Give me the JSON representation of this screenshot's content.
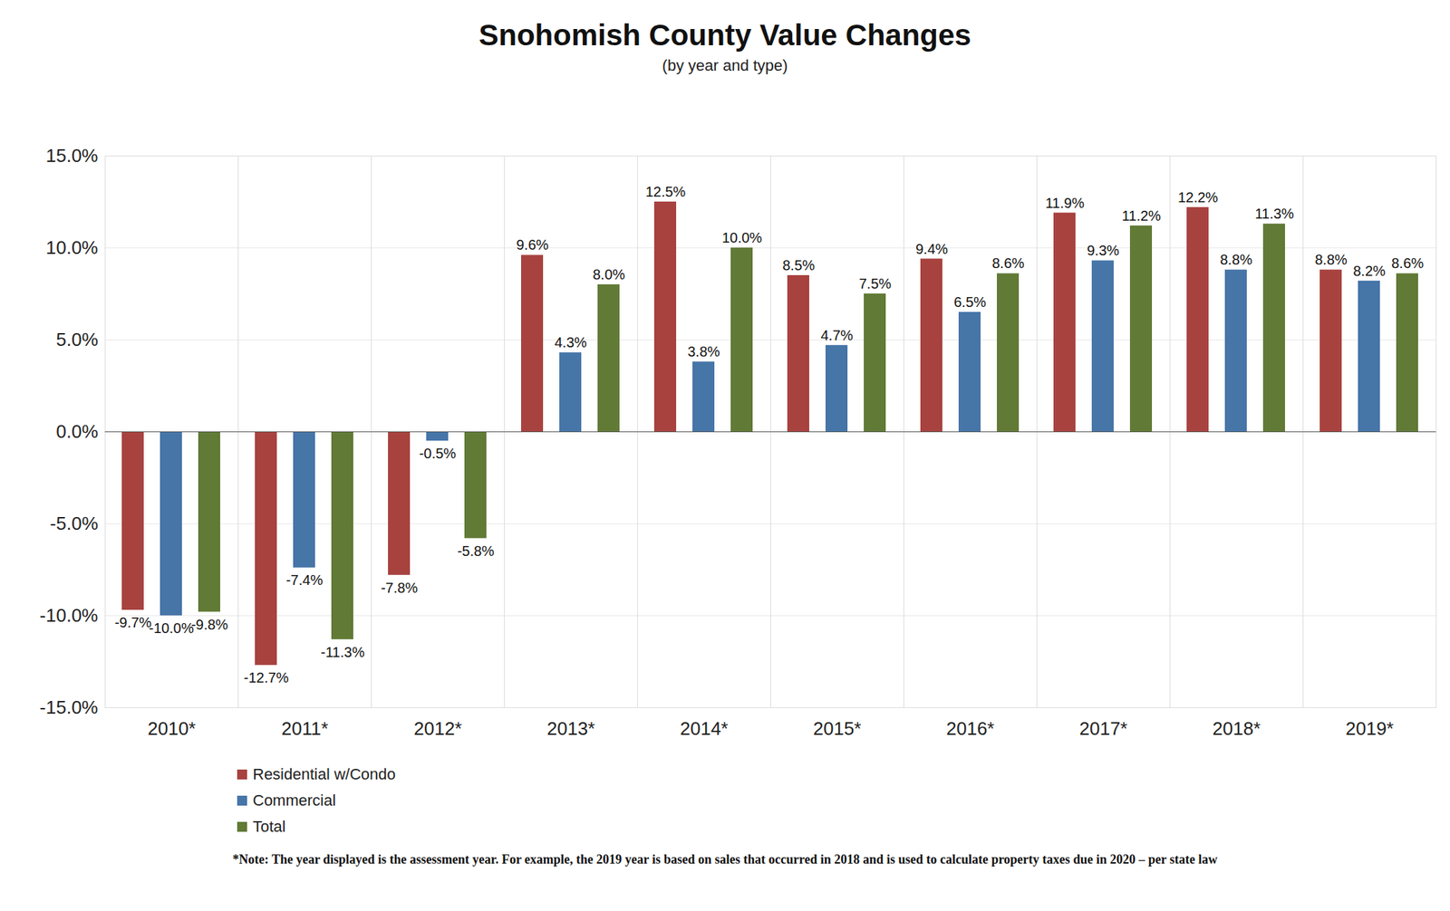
{
  "chart_data": {
    "type": "bar",
    "title": "Snohomish County Value Changes",
    "subtitle": "(by year and type)",
    "note": "*Note:  The year displayed is the assessment year.  For example, the 2019 year is based on sales that occurred in 2018 and is used to calculate property taxes due in 2020 – per state law",
    "categories": [
      "2010*",
      "2011*",
      "2012*",
      "2013*",
      "2014*",
      "2015*",
      "2016*",
      "2017*",
      "2018*",
      "2019*"
    ],
    "series": [
      {
        "name": "Residential w/Condo",
        "color": "#a8423f",
        "values": [
          -9.7,
          -12.7,
          -7.8,
          9.6,
          12.5,
          8.5,
          9.4,
          11.9,
          12.2,
          8.8
        ],
        "value_labels": [
          "-9.7%",
          "-12.7%",
          "-7.8%",
          "9.6%",
          "12.5%",
          "8.5%",
          "9.4%",
          "11.9%",
          "12.2%",
          "8.8%"
        ]
      },
      {
        "name": "Commercial",
        "color": "#4675a8",
        "values": [
          -10.0,
          -7.4,
          -0.5,
          4.3,
          3.8,
          4.7,
          6.5,
          9.3,
          8.8,
          8.2
        ],
        "value_labels": [
          "-10.0%",
          "-7.4%",
          "-0.5%",
          "4.3%",
          "3.8%",
          "4.7%",
          "6.5%",
          "9.3%",
          "8.8%",
          "8.2%"
        ]
      },
      {
        "name": "Total",
        "color": "#617a36",
        "values": [
          -9.8,
          -11.3,
          -5.8,
          8.0,
          10.0,
          7.5,
          8.6,
          11.2,
          11.3,
          8.6
        ],
        "value_labels": [
          "-9.8%",
          "-11.3%",
          "-5.8%",
          "8.0%",
          "10.0%",
          "7.5%",
          "8.6%",
          "11.2%",
          "11.3%",
          "8.6%"
        ]
      }
    ],
    "ylim": [
      -15,
      15
    ],
    "yticks": [
      {
        "value": -15,
        "label": "-15.0%"
      },
      {
        "value": -10,
        "label": "-10.0%"
      },
      {
        "value": -5,
        "label": "-5.0%"
      },
      {
        "value": 0,
        "label": "0.0%"
      },
      {
        "value": 5,
        "label": "5.0%"
      },
      {
        "value": 10,
        "label": "10.0%"
      },
      {
        "value": 15,
        "label": "15.0%"
      }
    ],
    "grid": true,
    "data_labels": true,
    "legend": "bottom-left"
  }
}
